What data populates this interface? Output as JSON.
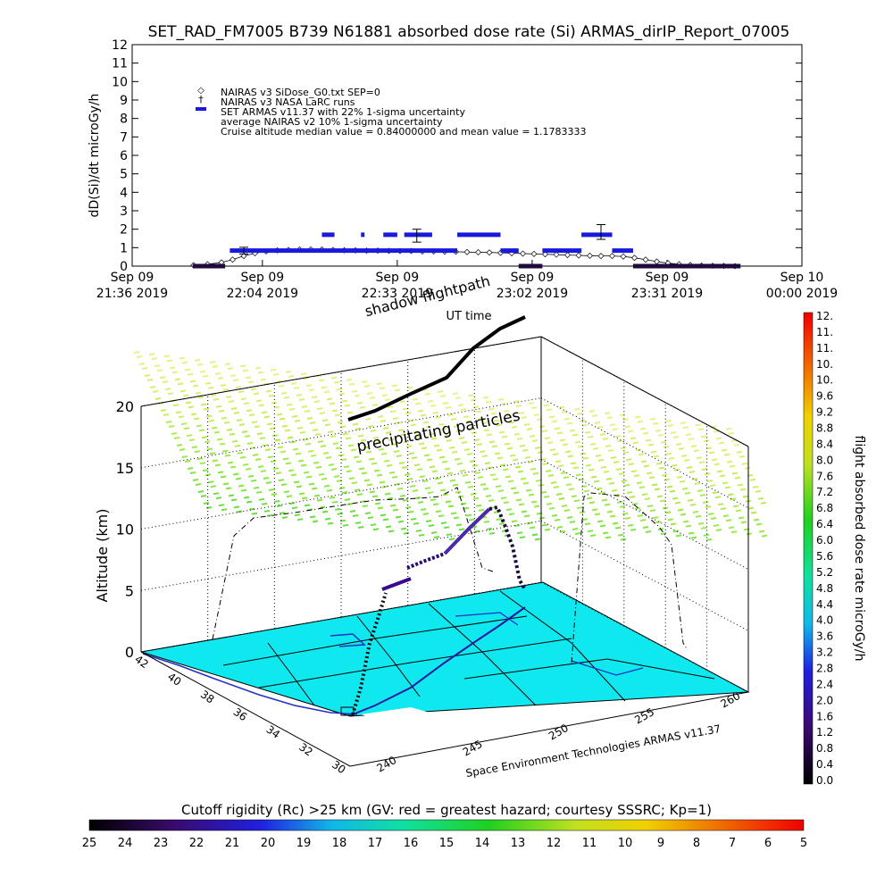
{
  "chart_data": [
    {
      "type": "scatter",
      "title": "SET_RAD_FM7005   B739 N61881 absorbed dose rate (Si) ARMAS_dirIP_Report_07005",
      "ylabel": "dD(Si)/dt microGy/h",
      "xlabel": "UT time",
      "ylim": [
        0,
        12
      ],
      "yticks": [
        "0",
        "1",
        "2",
        "3",
        "4",
        "5",
        "6",
        "7",
        "8",
        "9",
        "10",
        "11",
        "12"
      ],
      "xticks": [
        {
          "l1": "Sep 09",
          "l2": "21:36 2019",
          "t": 21.6
        },
        {
          "l1": "Sep 09",
          "l2": "22:04 2019",
          "t": 22.0667
        },
        {
          "l1": "Sep 09",
          "l2": "22:33 2019",
          "t": 22.55
        },
        {
          "l1": "Sep 09",
          "l2": "23:02 2019",
          "t": 23.0333
        },
        {
          "l1": "Sep 09",
          "l2": "23:31 2019",
          "t": 23.5167
        },
        {
          "l1": "Sep 10",
          "l2": "00:00 2019",
          "t": 24.0
        }
      ],
      "legend": [
        "NAIRAS v3 SiDose_G0.txt SEP=0",
        "NAIRAS v3 NASA LaRC runs",
        "SET ARMAS v11.37 with 22% 1-sigma uncertainty",
        "average NAIRAS v2 10% 1-sigma uncertainty",
        "Cruise altitude median value = 0.84000000 and mean value = 1.1783333"
      ],
      "series": [
        {
          "name": "SET ARMAS v11.37 with 22% 1-sigma uncertainty",
          "color": "#1a1adc",
          "segments": [
            {
              "t0": 21.8167,
              "t1": 21.9333,
              "v": 0
            },
            {
              "t0": 21.95,
              "t1": 22.6,
              "v": 0.84
            },
            {
              "t0": 22.28,
              "t1": 22.325,
              "v": 1.7
            },
            {
              "t0": 22.42,
              "t1": 22.42,
              "v": 1.7
            },
            {
              "t0": 22.5,
              "t1": 22.55,
              "v": 1.7
            },
            {
              "t0": 22.575,
              "t1": 22.675,
              "v": 1.7
            },
            {
              "t0": 22.765,
              "t1": 22.92,
              "v": 1.7
            },
            {
              "t0": 22.6,
              "t1": 22.765,
              "v": 0.84
            },
            {
              "t0": 22.92,
              "t1": 22.985,
              "v": 0.84
            },
            {
              "t0": 22.985,
              "t1": 23.07,
              "v": 0
            },
            {
              "t0": 23.07,
              "t1": 23.21,
              "v": 0.84
            },
            {
              "t0": 23.21,
              "t1": 23.32,
              "v": 1.7
            },
            {
              "t0": 23.32,
              "t1": 23.395,
              "v": 0.84
            },
            {
              "t0": 23.395,
              "t1": 23.78,
              "v": 0
            }
          ]
        },
        {
          "name": "NAIRAS v3 SiDose_G0.txt SEP=0",
          "color": "#000000",
          "points": [
            [
              21.82,
              0.05
            ],
            [
              21.87,
              0.1
            ],
            [
              21.92,
              0.2
            ],
            [
              21.96,
              0.35
            ],
            [
              22.0,
              0.55
            ],
            [
              22.04,
              0.7
            ],
            [
              22.08,
              0.8
            ],
            [
              22.12,
              0.85
            ],
            [
              22.16,
              0.88
            ],
            [
              22.2,
              0.9
            ],
            [
              22.24,
              0.9
            ],
            [
              22.28,
              0.9
            ],
            [
              22.32,
              0.88
            ],
            [
              22.36,
              0.86
            ],
            [
              22.4,
              0.85
            ],
            [
              22.44,
              0.84
            ],
            [
              22.48,
              0.84
            ],
            [
              22.52,
              0.83
            ],
            [
              22.56,
              0.82
            ],
            [
              22.6,
              0.82
            ],
            [
              22.64,
              0.8
            ],
            [
              22.68,
              0.8
            ],
            [
              22.72,
              0.78
            ],
            [
              22.76,
              0.78
            ],
            [
              22.8,
              0.76
            ],
            [
              22.84,
              0.75
            ],
            [
              22.88,
              0.74
            ],
            [
              22.92,
              0.72
            ],
            [
              22.96,
              0.7
            ],
            [
              23.0,
              0.68
            ],
            [
              23.04,
              0.66
            ],
            [
              23.08,
              0.64
            ],
            [
              23.12,
              0.62
            ],
            [
              23.16,
              0.6
            ],
            [
              23.2,
              0.58
            ],
            [
              23.24,
              0.56
            ],
            [
              23.28,
              0.55
            ],
            [
              23.32,
              0.55
            ],
            [
              23.36,
              0.52
            ],
            [
              23.4,
              0.45
            ],
            [
              23.44,
              0.35
            ],
            [
              23.48,
              0.25
            ],
            [
              23.52,
              0.16
            ],
            [
              23.56,
              0.1
            ],
            [
              23.6,
              0.06
            ],
            [
              23.64,
              0.03
            ],
            [
              23.68,
              0.02
            ],
            [
              23.72,
              0.01
            ],
            [
              23.76,
              0.0
            ]
          ]
        }
      ],
      "errorbars": [
        {
          "t": 22.0,
          "v": 0.84,
          "e": 0.18
        },
        {
          "t": 22.62,
          "v": 1.65,
          "e": 0.35
        },
        {
          "t": 23.28,
          "v": 1.85,
          "e": 0.4
        }
      ]
    },
    {
      "type": "scatter",
      "title": "shadow flightpath",
      "zlabel": "Altitude (km)",
      "zticks": [
        "0",
        "5",
        "10",
        "15",
        "20"
      ],
      "latticks": [
        "42",
        "40",
        "38",
        "36",
        "34",
        "32",
        "30"
      ],
      "lonticks": [
        "240",
        "245",
        "250",
        "255",
        "260"
      ],
      "labels": [
        "precipitating particles",
        "Space Environment Technologies ARMAS v11.37"
      ]
    },
    {
      "type": "heatmap",
      "ylabel": "flight absorbed dose rate microGy/h",
      "ticks": [
        "12.",
        "11.",
        "11.",
        "10.",
        "10.",
        "9.6",
        "9.2",
        "8.8",
        "8.4",
        "8.0",
        "7.6",
        "7.2",
        "6.8",
        "6.4",
        "6.0",
        "5.6",
        "5.2",
        "4.8",
        "4.4",
        "4.0",
        "3.6",
        "3.2",
        "2.8",
        "2.4",
        "2.0",
        "1.6",
        "1.2",
        "0.8",
        "0.4",
        "0.0"
      ]
    },
    {
      "type": "heatmap",
      "xlabel": "Cutoff rigidity (Rc) >25 km (GV: red = greatest hazard; courtesy SSSRC; Kp=1)",
      "ticks": [
        "25",
        "24",
        "23",
        "22",
        "21",
        "20",
        "19",
        "18",
        "17",
        "16",
        "15",
        "14",
        "13",
        "12",
        "11",
        "10",
        "9",
        "8",
        "7",
        "6",
        "5"
      ]
    }
  ]
}
